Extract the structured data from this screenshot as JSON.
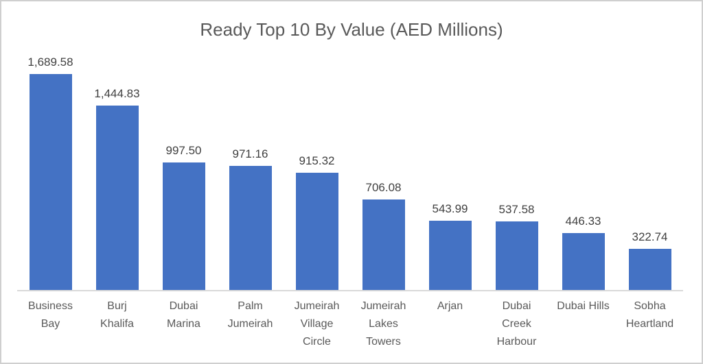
{
  "chart_data": {
    "type": "bar",
    "title": "Ready Top 10 By Value (AED Millions)",
    "categories": [
      "Business\nBay",
      "Burj\nKhalifa",
      "Dubai\nMarina",
      "Palm\nJumeirah",
      "Jumeirah\nVillage\nCircle",
      "Jumeirah\nLakes\nTowers",
      "Arjan",
      "Dubai\nCreek\nHarbour",
      "Dubai Hills",
      "Sobha\nHeartland"
    ],
    "values": [
      1689.58,
      1444.83,
      997.5,
      971.16,
      915.32,
      706.08,
      543.99,
      537.58,
      446.33,
      322.74
    ],
    "value_labels": [
      "1,689.58",
      "1,444.83",
      "997.50",
      "971.16",
      "915.32",
      "706.08",
      "543.99",
      "537.58",
      "446.33",
      "322.74"
    ],
    "xlabel": "",
    "ylabel": "",
    "ylim": [
      0,
      1689.58
    ],
    "grid": false,
    "legend": false,
    "bar_color": "#4472C4",
    "axis_line_color": "#d9d9d9",
    "title_color": "#595959",
    "label_color": "#404040",
    "category_label_color": "#595959"
  }
}
